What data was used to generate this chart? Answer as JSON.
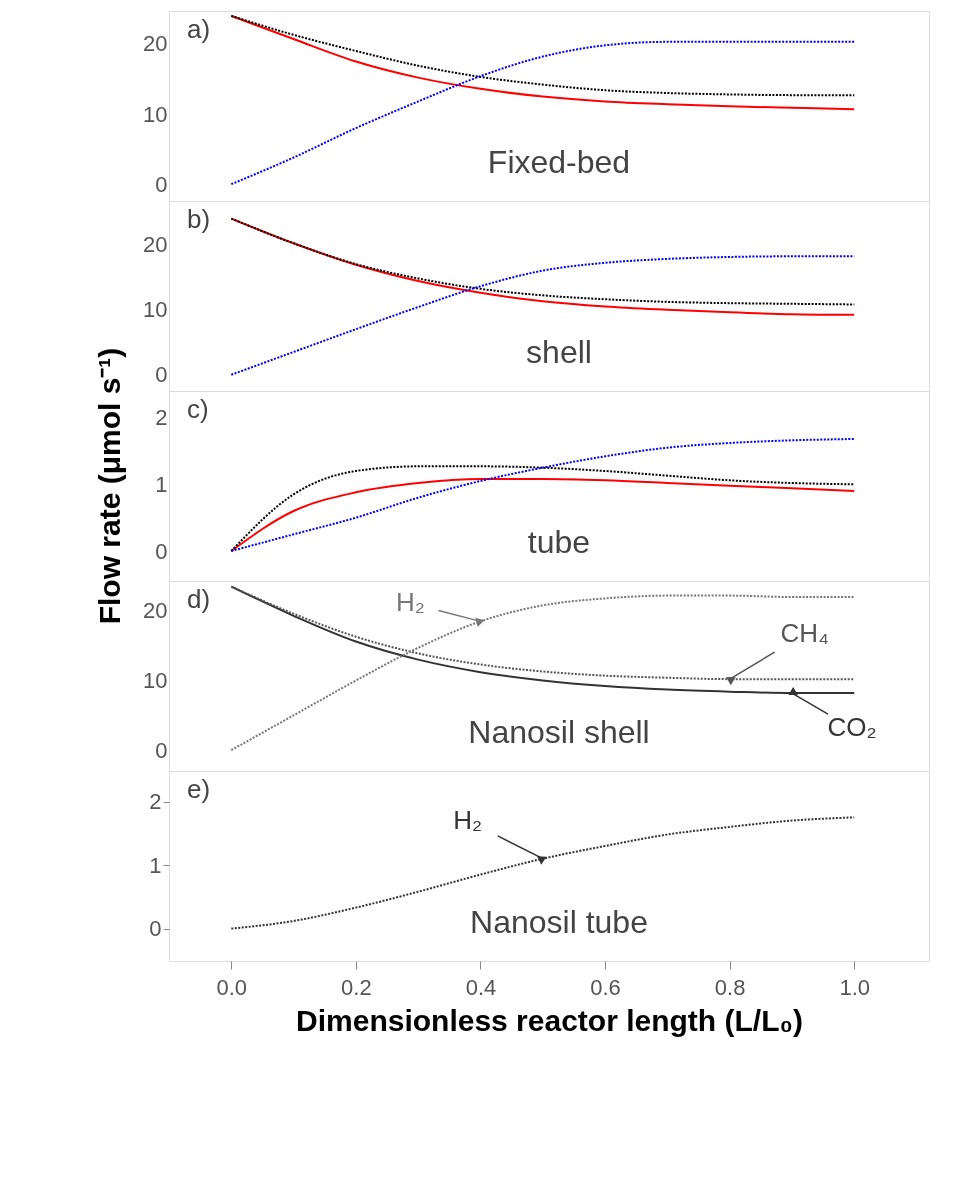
{
  "chart_data": [
    {
      "type": "line",
      "title": "a)",
      "subtitle": "Fixed-bed",
      "x": [
        0,
        0.1,
        0.2,
        0.3,
        0.4,
        0.5,
        0.6,
        0.7,
        0.8,
        0.9,
        1.0
      ],
      "series": [
        {
          "color": "#ff0000",
          "line_style": "solid",
          "values": [
            24,
            20.7,
            17.5,
            15.2,
            13.6,
            12.5,
            11.8,
            11.4,
            11.1,
            10.9,
            10.7
          ]
        },
        {
          "color": "#000000",
          "line_style": "dotted",
          "values": [
            24,
            21.3,
            19,
            16.9,
            15.3,
            14.2,
            13.4,
            13,
            12.8,
            12.7,
            12.7
          ]
        },
        {
          "color": "#0000ff",
          "line_style": "dotted",
          "values": [
            0,
            3.8,
            8,
            11.8,
            15.4,
            18.2,
            19.8,
            20.3,
            20.3,
            20.3,
            20.3
          ]
        }
      ],
      "xlim": [
        -0.1,
        1.12
      ],
      "ylim": [
        -2.4,
        24.7
      ],
      "yticks": [
        0,
        10,
        20
      ],
      "tick_labels": "y"
    },
    {
      "type": "line",
      "title": "b)",
      "subtitle": "shell",
      "x": [
        0,
        0.1,
        0.2,
        0.3,
        0.4,
        0.5,
        0.6,
        0.7,
        0.8,
        0.9,
        1.0
      ],
      "series": [
        {
          "color": "#ff0000",
          "line_style": "solid",
          "values": [
            24,
            20.2,
            16.9,
            14.4,
            12.6,
            11.3,
            10.5,
            10,
            9.6,
            9.3,
            9.2
          ]
        },
        {
          "color": "#000000",
          "line_style": "dotted",
          "values": [
            24,
            20.2,
            17,
            14.8,
            13.2,
            12.2,
            11.6,
            11.2,
            11,
            10.9,
            10.8
          ]
        },
        {
          "color": "#0000ff",
          "line_style": "dotted",
          "values": [
            0,
            3.5,
            7,
            10.4,
            13.6,
            16,
            17.2,
            17.8,
            18.1,
            18.2,
            18.2
          ]
        }
      ],
      "xlim": [
        -0.1,
        1.12
      ],
      "ylim": [
        -2.5,
        26.7
      ],
      "yticks": [
        0,
        10,
        20
      ],
      "tick_labels": "y"
    },
    {
      "type": "line",
      "title": "c)",
      "subtitle": "tube",
      "ylabel": "Flow rate (μmol s⁻¹)",
      "x": [
        0,
        0.1,
        0.2,
        0.3,
        0.4,
        0.5,
        0.6,
        0.7,
        0.8,
        0.9,
        1.0
      ],
      "series": [
        {
          "color": "#ff0000",
          "line_style": "solid",
          "values": [
            0,
            0.6,
            0.88,
            1.02,
            1.08,
            1.08,
            1.06,
            1.02,
            0.98,
            0.94,
            0.9
          ]
        },
        {
          "color": "#000000",
          "line_style": "dotted",
          "values": [
            0,
            0.85,
            1.2,
            1.27,
            1.27,
            1.25,
            1.2,
            1.13,
            1.06,
            1.02,
            1.0
          ]
        },
        {
          "color": "#0000ff",
          "line_style": "dotted",
          "values": [
            0,
            0.25,
            0.5,
            0.8,
            1.05,
            1.25,
            1.42,
            1.55,
            1.62,
            1.66,
            1.68
          ]
        }
      ],
      "xlim": [
        -0.1,
        1.12
      ],
      "ylim": [
        -0.45,
        2.4
      ],
      "yticks": [
        0,
        1,
        2
      ],
      "tick_labels": "y"
    },
    {
      "type": "line",
      "title": "d)",
      "subtitle": "Nanosil shell",
      "x": [
        0,
        0.1,
        0.2,
        0.3,
        0.4,
        0.5,
        0.6,
        0.7,
        0.8,
        0.9,
        1.0
      ],
      "series": [
        {
          "name": "CO₂",
          "color": "#333333",
          "line_style": "solid",
          "values": [
            23.5,
            19.3,
            15.6,
            13,
            11.2,
            10,
            9.2,
            8.7,
            8.4,
            8.2,
            8.2
          ]
        },
        {
          "name": "CH₄",
          "color": "#555555",
          "line_style": "dotted",
          "values": [
            23.5,
            19.6,
            16.3,
            13.9,
            12.3,
            11.3,
            10.7,
            10.4,
            10.2,
            10.2,
            10.2
          ]
        },
        {
          "name": "H₂",
          "color": "#777777",
          "line_style": "dotted",
          "values": [
            0,
            5,
            10,
            14.7,
            18.5,
            20.8,
            21.8,
            22.2,
            22.2,
            22,
            22
          ]
        }
      ],
      "xlim": [
        -0.1,
        1.12
      ],
      "ylim": [
        -3.0,
        24.3
      ],
      "yticks": [
        0,
        10,
        20
      ],
      "tick_labels": "y"
    },
    {
      "type": "line",
      "title": "e)",
      "subtitle": "Nanosil tube",
      "xlabel": "Dimensionless reactor length (L/L₀)",
      "x": [
        0,
        0.1,
        0.2,
        0.3,
        0.4,
        0.5,
        0.6,
        0.7,
        0.8,
        0.9,
        1.0
      ],
      "series": [
        {
          "name": "H₂",
          "color": "#333333",
          "line_style": "dotted",
          "values": [
            0,
            0.12,
            0.33,
            0.58,
            0.85,
            1.1,
            1.3,
            1.48,
            1.6,
            1.7,
            1.75
          ]
        }
      ],
      "xlim": [
        -0.1,
        1.12
      ],
      "ylim": [
        -0.51,
        2.48
      ],
      "yticks": [
        0,
        1,
        2
      ],
      "xticks": [
        {
          "value": 0,
          "label": "0.0"
        },
        {
          "value": 0.2,
          "label": "0.2"
        },
        {
          "value": 0.4,
          "label": "0.4"
        },
        {
          "value": 0.6,
          "label": "0.6"
        },
        {
          "value": 0.8,
          "label": "0.8"
        },
        {
          "value": 1.0,
          "label": "1.0"
        }
      ]
    }
  ]
}
